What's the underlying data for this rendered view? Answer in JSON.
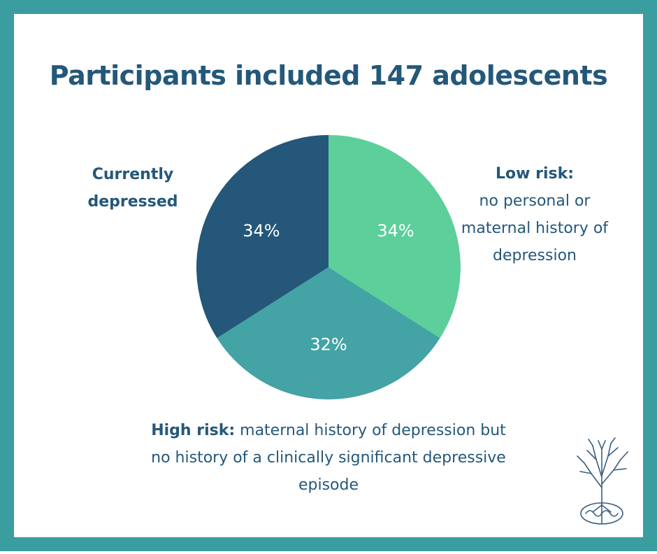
{
  "title": "Participants included 147 adolescents",
  "labels": {
    "depressed": "Currently depressed",
    "low_risk_heading": "Low risk:",
    "low_risk_text": "no personal or maternal history of depression",
    "high_risk_heading": "High risk:",
    "high_risk_text": "maternal history of depression but no history of a clinically significant depressive episode"
  },
  "colors": {
    "frame": "#3a9ea1",
    "text": "#24587a",
    "low_risk": "#5ccf9b",
    "high_risk": "#43a3a5",
    "depressed": "#245779"
  },
  "chart_data": {
    "type": "pie",
    "title": "Participants included 147 adolescents",
    "categories": [
      "Low risk",
      "High risk",
      "Currently depressed"
    ],
    "values": [
      34,
      32,
      34
    ],
    "value_labels": [
      "34%",
      "32%",
      "34%"
    ],
    "unit": "%",
    "start_angle_deg": 0,
    "direction": "clockwise"
  },
  "logo": {
    "icon": "tree-brain-icon"
  }
}
